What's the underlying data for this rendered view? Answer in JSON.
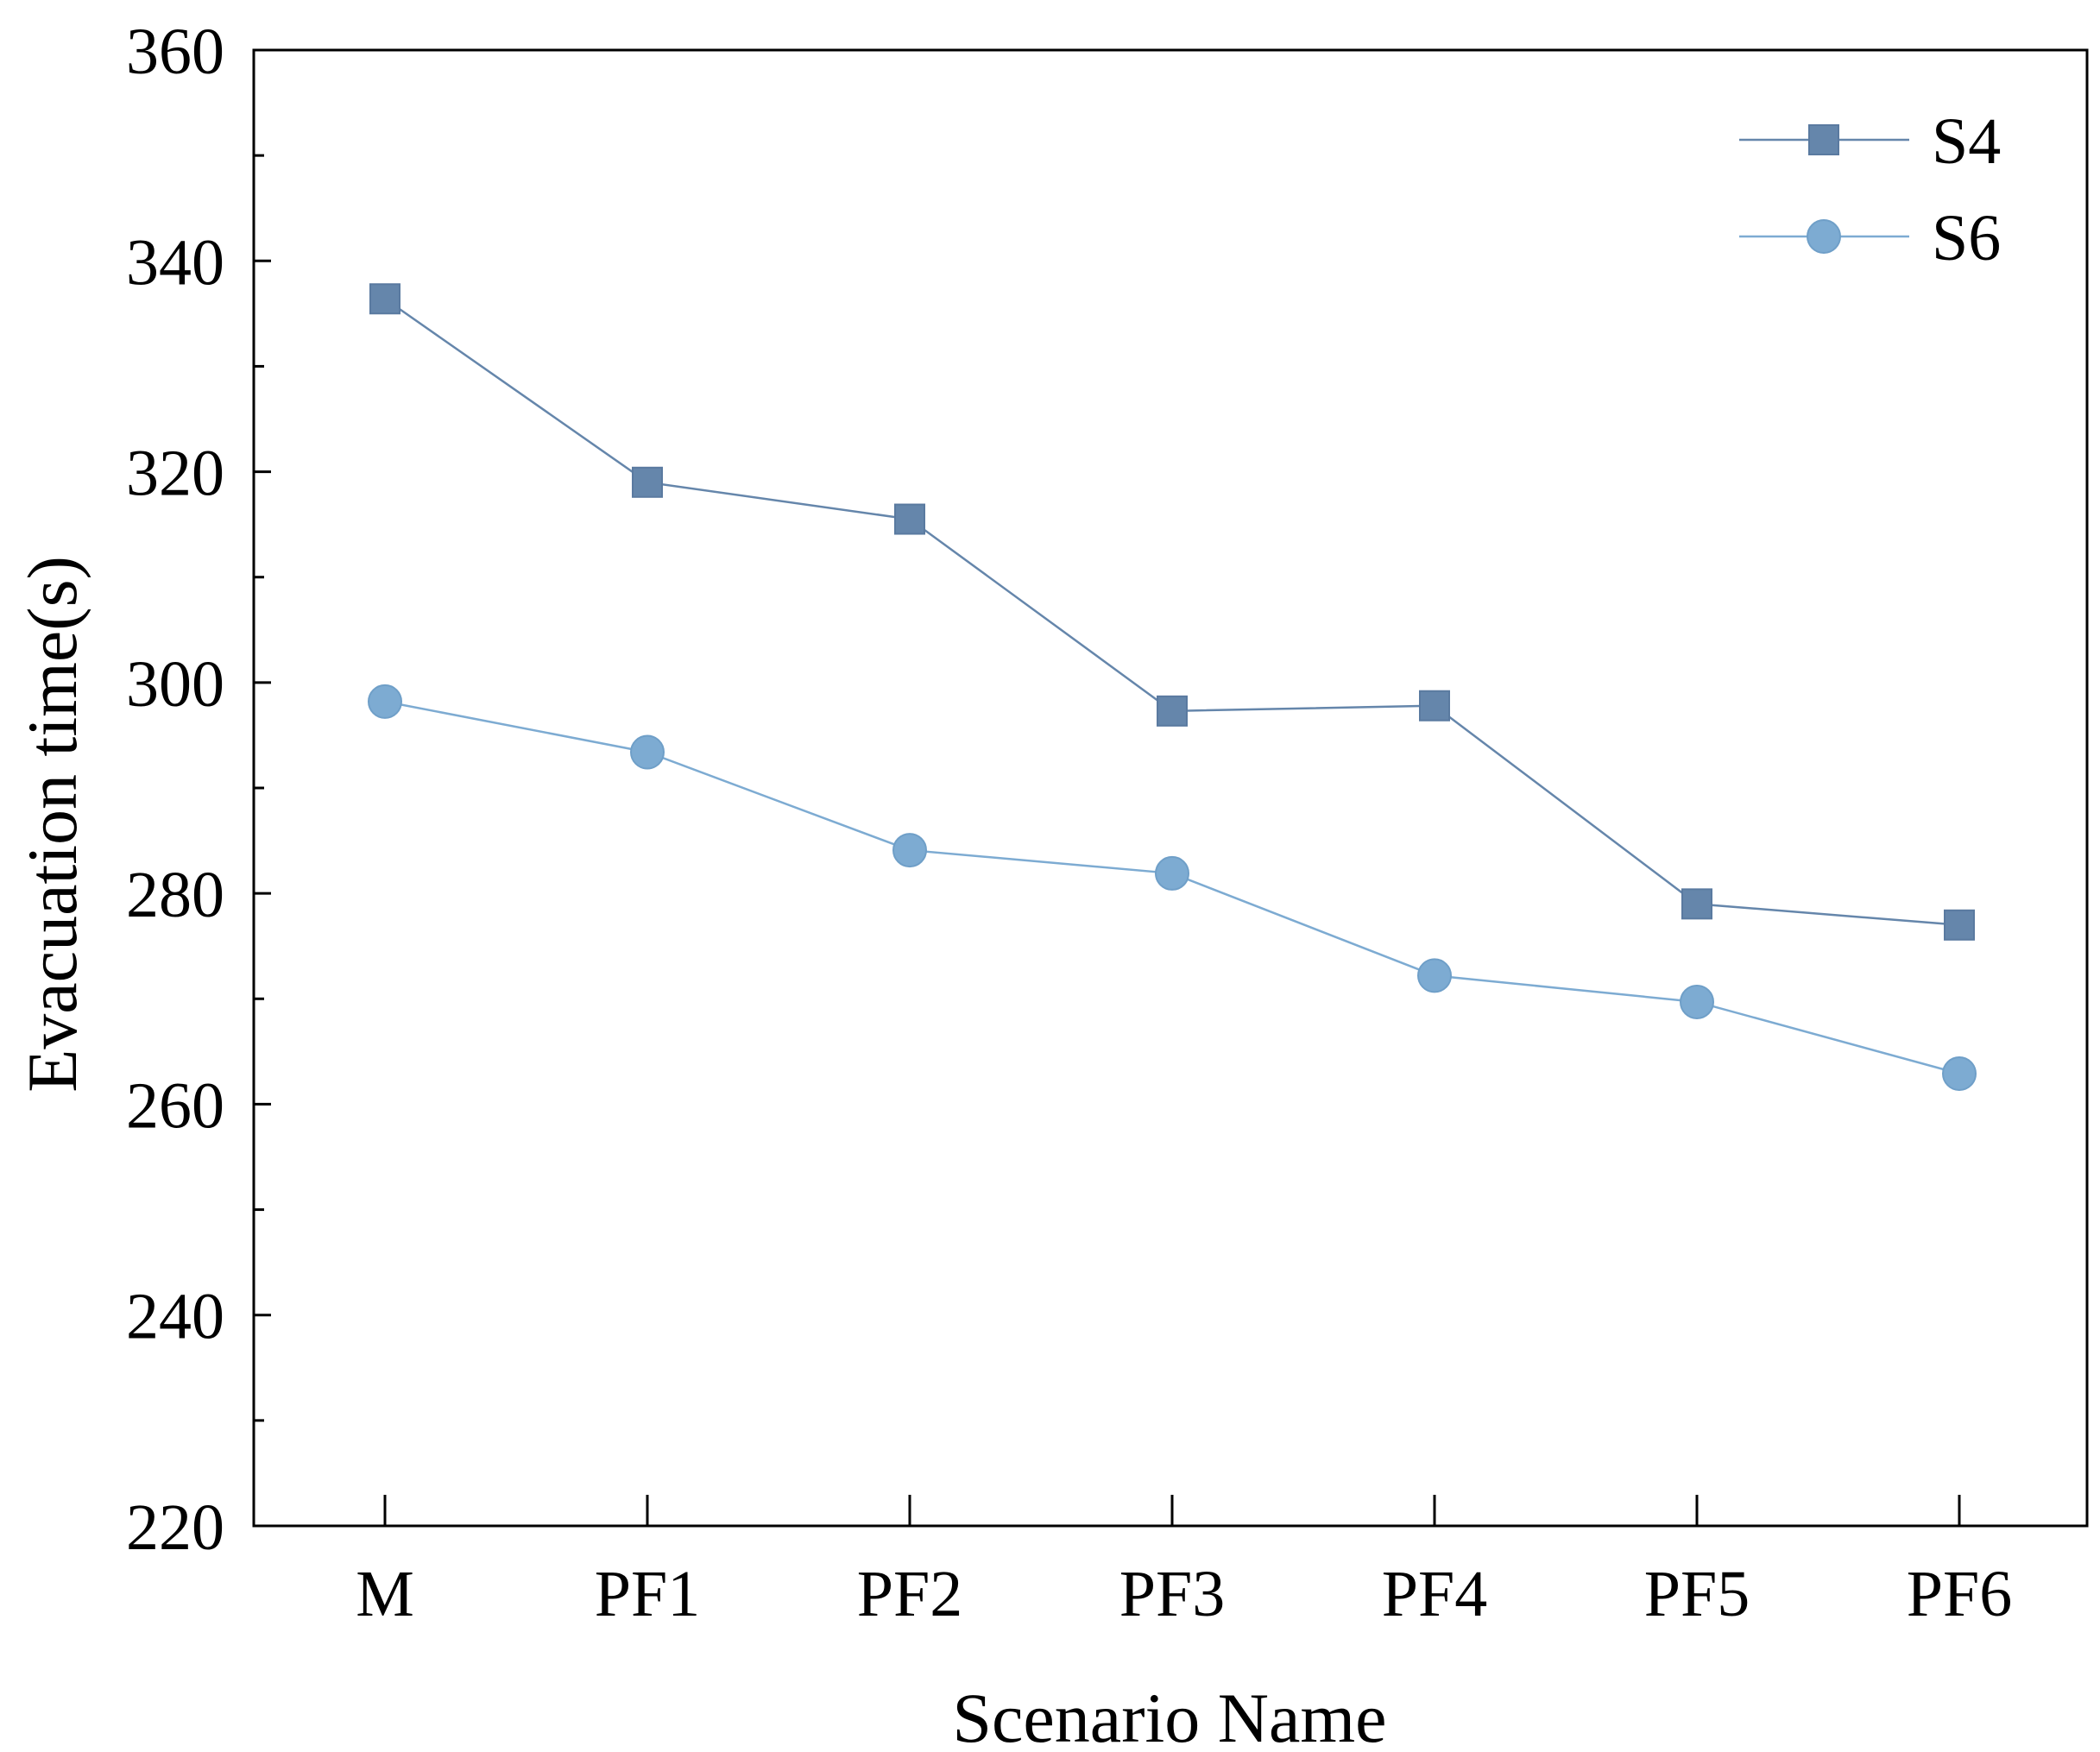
{
  "chart_data": {
    "type": "line",
    "xlabel": "Scenario Name",
    "ylabel": "Evacuation time(s)",
    "categories": [
      "M",
      "PF1",
      "PF2",
      "PF3",
      "PF4",
      "PF5",
      "PF6"
    ],
    "ylim": [
      220,
      360
    ],
    "yticks": [
      220,
      240,
      260,
      280,
      300,
      320,
      340,
      360
    ],
    "ytick_labels": [
      "220",
      "240",
      "260",
      "280",
      "300",
      "320",
      "340",
      "360"
    ],
    "y_minor_step": 10,
    "grid": false,
    "legend": {
      "position": "top-right"
    },
    "series": [
      {
        "name": "S4",
        "marker": "square",
        "color": "#6586ab",
        "values": [
          336.4,
          319.0,
          315.5,
          297.3,
          297.8,
          279.0,
          277.0
        ]
      },
      {
        "name": "S6",
        "marker": "circle",
        "color": "#7dabd2",
        "values": [
          298.2,
          293.4,
          284.1,
          281.9,
          272.2,
          269.7,
          262.9
        ]
      }
    ]
  }
}
